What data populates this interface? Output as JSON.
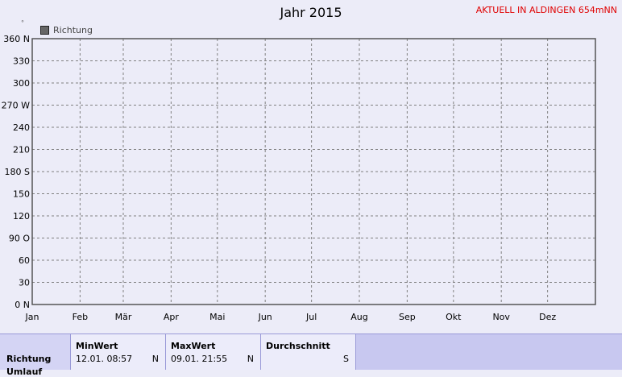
{
  "title": "Jahr 2015",
  "station": "AKTUELL IN ALDINGEN 654mNN",
  "unit_mark": "°",
  "legend": {
    "label": "Richtung",
    "color": "#666666"
  },
  "chart_data": {
    "type": "line",
    "title": "Jahr 2015",
    "series": [
      {
        "name": "Richtung",
        "color": "#7a7a7a"
      }
    ],
    "ylim": [
      0,
      360
    ],
    "yticks": [
      {
        "value": 0,
        "label": "0 N"
      },
      {
        "value": 30,
        "label": "30"
      },
      {
        "value": 60,
        "label": "60"
      },
      {
        "value": 90,
        "label": "90 O"
      },
      {
        "value": 120,
        "label": "120"
      },
      {
        "value": 150,
        "label": "150"
      },
      {
        "value": 180,
        "label": "180 S"
      },
      {
        "value": 210,
        "label": "210"
      },
      {
        "value": 240,
        "label": "240"
      },
      {
        "value": 270,
        "label": "270 W"
      },
      {
        "value": 300,
        "label": "300"
      },
      {
        "value": 330,
        "label": "330"
      },
      {
        "value": 360,
        "label": "360 N"
      }
    ],
    "xlim": [
      0,
      365
    ],
    "xticks": [
      {
        "day": 0,
        "label": "Jan"
      },
      {
        "day": 31,
        "label": "Feb"
      },
      {
        "day": 59,
        "label": "Mär"
      },
      {
        "day": 90,
        "label": "Apr"
      },
      {
        "day": 120,
        "label": "Mai"
      },
      {
        "day": 151,
        "label": "Jun"
      },
      {
        "day": 181,
        "label": "Jul"
      },
      {
        "day": 212,
        "label": "Aug"
      },
      {
        "day": 243,
        "label": "Sep"
      },
      {
        "day": 273,
        "label": "Okt"
      },
      {
        "day": 304,
        "label": "Nov"
      },
      {
        "day": 334,
        "label": "Dez"
      }
    ],
    "grid": true,
    "legend_position": "top-left"
  },
  "stats": {
    "row_label": "Richtung",
    "row_label2": "Umlauf",
    "columns": [
      {
        "header": "MinWert",
        "time": "12.01.  08:57",
        "dir": "N"
      },
      {
        "header": "MaxWert",
        "time": "09.01.  21:55",
        "dir": "N"
      },
      {
        "header": "Durchschnitt",
        "time": "",
        "dir": "S"
      }
    ]
  }
}
